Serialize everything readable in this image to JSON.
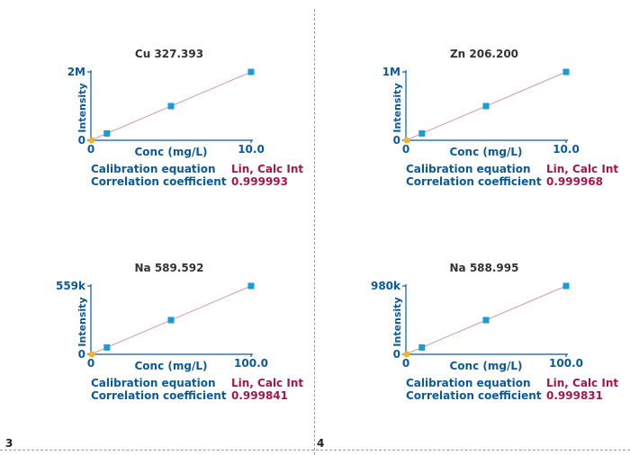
{
  "page_numbers": [
    "3",
    "4"
  ],
  "labels": {
    "xlabel": "Conc (mg/L)",
    "ylabel": "Intensity",
    "equation_label": "Calibration equation",
    "correlation_label": "Correlation coefficient"
  },
  "colors": {
    "axis": "#0a5a9a",
    "line": "#d29aa3",
    "point": "#1a9ad6",
    "origin_point": "#f2b42a",
    "value": "#a3174d",
    "title": "#333333"
  },
  "chart_data": [
    {
      "type": "scatter",
      "title": "Cu 327.393",
      "xlabel": "Conc (mg/L)",
      "ylabel": "Intensity",
      "x_tick_labels": [
        "0",
        "10.0"
      ],
      "y_tick_labels": [
        "0",
        "2M"
      ],
      "xlim": [
        0,
        10.0
      ],
      "ylim": [
        0,
        2000000
      ],
      "origin_point": [
        0,
        0
      ],
      "points": [
        [
          1.0,
          200000
        ],
        [
          5.0,
          1000000
        ],
        [
          10.0,
          2000000
        ]
      ],
      "fit_line": [
        [
          0,
          0
        ],
        [
          10.0,
          2000000
        ]
      ],
      "calibration_equation": "Lin, Calc Int",
      "correlation_coefficient": "0.999993"
    },
    {
      "type": "scatter",
      "title": "Zn 206.200",
      "xlabel": "Conc (mg/L)",
      "ylabel": "Intensity",
      "x_tick_labels": [
        "0",
        "10.0"
      ],
      "y_tick_labels": [
        "0",
        "1M"
      ],
      "xlim": [
        0,
        10.0
      ],
      "ylim": [
        0,
        1000000
      ],
      "origin_point": [
        0,
        0
      ],
      "points": [
        [
          1.0,
          100000
        ],
        [
          5.0,
          500000
        ],
        [
          10.0,
          1000000
        ]
      ],
      "fit_line": [
        [
          0,
          0
        ],
        [
          10.0,
          1000000
        ]
      ],
      "calibration_equation": "Lin, Calc Int",
      "correlation_coefficient": "0.999968"
    },
    {
      "type": "scatter",
      "title": "Na 589.592",
      "xlabel": "Conc (mg/L)",
      "ylabel": "Intensity",
      "x_tick_labels": [
        "0",
        "100.0"
      ],
      "y_tick_labels": [
        "0",
        "559k"
      ],
      "xlim": [
        0,
        100.0
      ],
      "ylim": [
        0,
        559000
      ],
      "origin_point": [
        0,
        0
      ],
      "points": [
        [
          10.0,
          55900
        ],
        [
          50.0,
          279500
        ],
        [
          100.0,
          559000
        ]
      ],
      "fit_line": [
        [
          0,
          0
        ],
        [
          100.0,
          559000
        ]
      ],
      "calibration_equation": "Lin, Calc Int",
      "correlation_coefficient": "0.999841"
    },
    {
      "type": "scatter",
      "title": "Na 588.995",
      "xlabel": "Conc (mg/L)",
      "ylabel": "Intensity",
      "x_tick_labels": [
        "0",
        "100.0"
      ],
      "y_tick_labels": [
        "0",
        "980k"
      ],
      "xlim": [
        0,
        100.0
      ],
      "ylim": [
        0,
        980000
      ],
      "origin_point": [
        0,
        0
      ],
      "points": [
        [
          10.0,
          98000
        ],
        [
          50.0,
          490000
        ],
        [
          100.0,
          980000
        ]
      ],
      "fit_line": [
        [
          0,
          0
        ],
        [
          100.0,
          980000
        ]
      ],
      "calibration_equation": "Lin, Calc Int",
      "correlation_coefficient": "0.999831"
    }
  ]
}
